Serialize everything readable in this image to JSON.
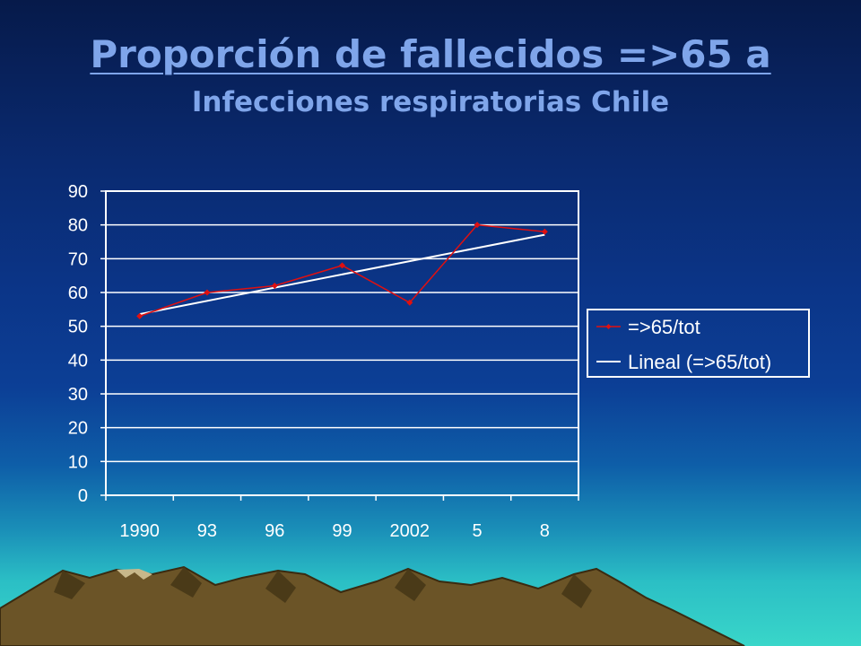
{
  "title": "Proporción de fallecidos =>65 a",
  "subtitle": "Infecciones respiratorias Chile",
  "chart_data": {
    "type": "line",
    "categories": [
      "1990",
      "93",
      "96",
      "99",
      "2002",
      "5",
      "8"
    ],
    "series": [
      {
        "name": "=>65/tot",
        "values": [
          53,
          60,
          62,
          68,
          57,
          80,
          78
        ],
        "color": "#e01010"
      },
      {
        "name": "Lineal (=>65/tot)",
        "values": [
          53.6,
          57.5,
          61.4,
          65.3,
          69.3,
          73.2,
          77.1
        ],
        "color": "#ffffff"
      }
    ],
    "yticks": [
      0,
      10,
      20,
      30,
      40,
      50,
      60,
      70,
      80,
      90
    ],
    "ylim": [
      0,
      90
    ],
    "grid": true,
    "legend_position": "right"
  }
}
